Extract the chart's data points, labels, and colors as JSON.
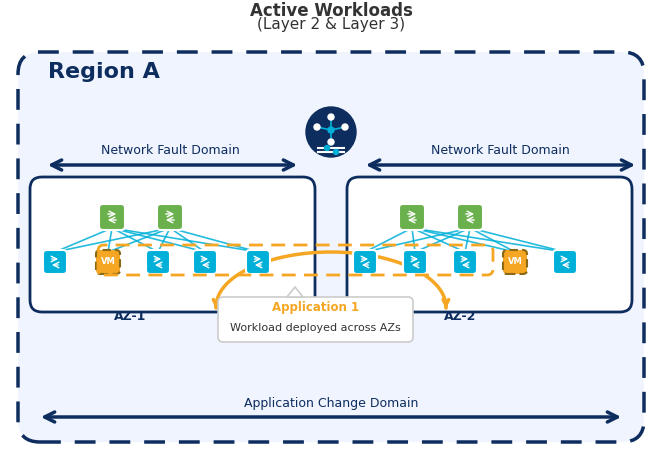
{
  "title_line1": "Active Workloads",
  "title_line2": "(Layer 2 & Layer 3)",
  "region_label": "Region A",
  "nfd_label": "Network Fault Domain",
  "acd_label": "Application Change Domain",
  "az1_label": "AZ-1",
  "az2_label": "AZ-2",
  "app_label_orange": "Application 1",
  "app_label_black": "Workload deployed across AZs",
  "color_dark_navy": "#0d2d5e",
  "color_navy": "#1a3a6b",
  "color_cyan": "#00b0d8",
  "color_green": "#6ab04c",
  "color_orange": "#f5a623",
  "color_orange_vm": "#f5a623",
  "color_white": "#ffffff",
  "color_bg": "#f5f5f5",
  "color_light_gray": "#e8e8e8"
}
